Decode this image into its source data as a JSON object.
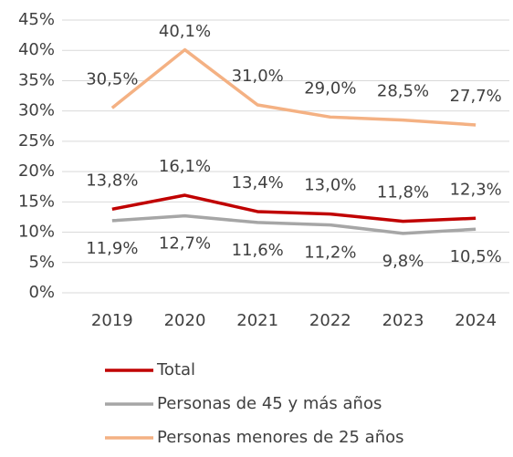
{
  "chart_data": {
    "type": "line",
    "categories": [
      "2019",
      "2020",
      "2021",
      "2022",
      "2023",
      "2024"
    ],
    "series": [
      {
        "name": "Total",
        "color": "#c00000",
        "values": [
          13.8,
          16.1,
          13.4,
          13.0,
          11.8,
          12.3
        ],
        "value_labels": [
          "13,8%",
          "16,1%",
          "13,4%",
          "13,0%",
          "11,8%",
          "12,3%"
        ]
      },
      {
        "name": "Personas de 45 y más años",
        "color": "#a6a6a6",
        "values": [
          11.9,
          12.7,
          11.6,
          11.2,
          9.8,
          10.5
        ],
        "value_labels": [
          "11,9%",
          "12,7%",
          "11,6%",
          "11,2%",
          "9,8%",
          "10,5%"
        ]
      },
      {
        "name": "Personas menores de 25 años",
        "color": "#f4b183",
        "values": [
          30.5,
          40.1,
          31.0,
          29.0,
          28.5,
          27.7
        ],
        "value_labels": [
          "30,5%",
          "40,1%",
          "31,0%",
          "29,0%",
          "28,5%",
          "27,7%"
        ]
      }
    ],
    "ylim": [
      0,
      45
    ],
    "yticks": [
      {
        "value": 0,
        "label": "0%"
      },
      {
        "value": 5,
        "label": "5%"
      },
      {
        "value": 10,
        "label": "10%"
      },
      {
        "value": 15,
        "label": "15%"
      },
      {
        "value": 20,
        "label": "20%"
      },
      {
        "value": 25,
        "label": "25%"
      },
      {
        "value": 30,
        "label": "30%"
      },
      {
        "value": 35,
        "label": "35%"
      },
      {
        "value": 40,
        "label": "40%"
      },
      {
        "value": 45,
        "label": "45%"
      }
    ],
    "grid": true
  }
}
